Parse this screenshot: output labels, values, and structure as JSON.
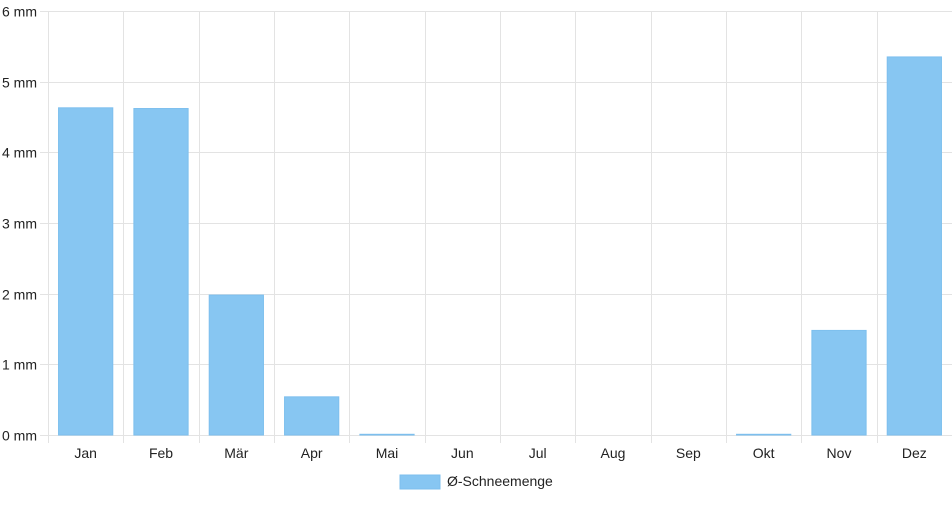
{
  "chart_data": {
    "type": "bar",
    "categories": [
      "Jan",
      "Feb",
      "Mär",
      "Apr",
      "Mai",
      "Jun",
      "Jul",
      "Aug",
      "Sep",
      "Okt",
      "Nov",
      "Dez"
    ],
    "series": [
      {
        "name": "Ø-Schneemenge",
        "values": [
          4.63,
          4.62,
          1.98,
          0.54,
          0.01,
          0,
          0,
          0,
          0,
          0.01,
          1.48,
          5.35
        ]
      }
    ],
    "y_unit": "mm",
    "y_ticks": [
      0,
      1,
      2,
      3,
      4,
      5,
      6
    ],
    "ylim": [
      0,
      6
    ],
    "grid": true,
    "legend_position": "bottom-center",
    "colors": {
      "bar_fill": "#87c6f2",
      "bar_stroke": "#7dbfee",
      "grid": "#e3e3e3",
      "axis_text": "#222222"
    }
  }
}
